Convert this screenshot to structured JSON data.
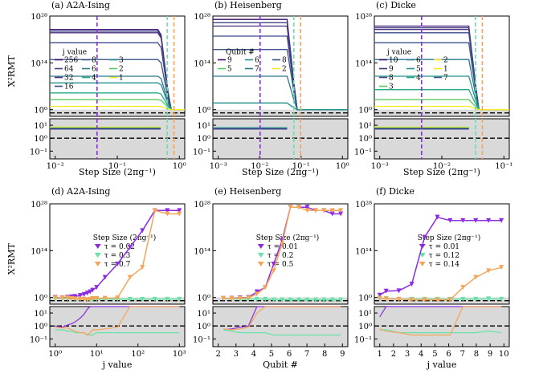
{
  "panels": [
    {
      "id": "a",
      "title": "(a) A2A-Ising",
      "xlabel": "Step Size (2πg⁻¹)",
      "ylabel": "X²RMT",
      "ticks_top": [
        "10²⁸",
        "10¹⁴",
        "10⁰"
      ],
      "ticks_bottom": [
        "10¹",
        "10⁰",
        "10⁻¹"
      ],
      "xticks": [
        "10⁻²",
        "10⁻¹",
        "10⁰"
      ],
      "legend": {
        "title": "j value",
        "items": [
          {
            "label": "256",
            "color": "#3b0f70"
          },
          {
            "label": "8",
            "color": "#3b528b"
          },
          {
            "label": "3",
            "color": "#21918c"
          },
          {
            "label": "64",
            "color": "#414487"
          },
          {
            "label": "6",
            "color": "#2a788e"
          },
          {
            "label": "2",
            "color": "#5ec962"
          },
          {
            "label": "32",
            "color": "#472d7b"
          },
          {
            "label": "4",
            "color": "#22a884"
          },
          {
            "label": "1",
            "color": "#fde725"
          },
          {
            "label": "16",
            "color": "#3e4a89"
          }
        ]
      }
    },
    {
      "id": "b",
      "title": "(b) Heisenberg",
      "xlabel": "Step Size (2πg⁻¹)",
      "ticks_top": [
        "10²⁸",
        "10¹⁴",
        "10⁰"
      ],
      "ticks_bottom": [
        "10¹",
        "10⁰",
        "10⁻¹"
      ],
      "xticks": [
        "10⁻³",
        "10⁻²",
        "10⁻¹",
        "10⁰"
      ],
      "legend": {
        "title": "Qubit #",
        "items": [
          {
            "label": "9",
            "color": "#3b0f70"
          },
          {
            "label": "6",
            "color": "#21918c"
          },
          {
            "label": "8",
            "color": "#3b528b"
          },
          {
            "label": "5",
            "color": "#5ec962"
          },
          {
            "label": "7",
            "color": "#2a788e"
          },
          {
            "label": "2",
            "color": "#fde725"
          }
        ]
      }
    },
    {
      "id": "c",
      "title": "(c) Dicke",
      "xlabel": "Step Size (2πg⁻¹)",
      "ticks_top": [
        "10²⁸",
        "10¹⁴",
        "10⁰"
      ],
      "ticks_bottom": [
        "10¹",
        "10⁰",
        "10⁻¹"
      ],
      "xticks": [
        "10⁻³",
        "10⁻²",
        "10⁻¹"
      ],
      "legend": {
        "title": "j value",
        "items": [
          {
            "label": "10",
            "color": "#3b0f70"
          },
          {
            "label": "6",
            "color": "#2a788e"
          },
          {
            "label": "2",
            "color": "#fde725"
          },
          {
            "label": "9",
            "color": "#472d7b"
          },
          {
            "label": "5",
            "color": "#21918c"
          },
          {
            "label": "1",
            "color": "#fde725"
          },
          {
            "label": "8",
            "color": "#414487"
          },
          {
            "label": "4",
            "color": "#22a884"
          },
          {
            "label": "7",
            "color": "#3b528b"
          },
          {
            "label": "3",
            "color": "#5ec962"
          }
        ]
      }
    },
    {
      "id": "d",
      "title": "(d) A2A-Ising",
      "xlabel": "j value",
      "ylabel": "X²RMT",
      "ticks_top": [
        "10²⁸",
        "10¹⁴",
        "10⁰"
      ],
      "ticks_bottom": [
        "10¹",
        "10⁰",
        "10⁻¹"
      ],
      "xticks": [
        "10⁰",
        "10¹",
        "10²",
        "10³"
      ],
      "legend": {
        "title": "Step Size (2πg⁻¹)",
        "items": [
          {
            "label": "τ = 0.02",
            "color": "#8b2be2"
          },
          {
            "label": "τ = 0.3",
            "color": "#66e3a8"
          },
          {
            "label": "τ = 0.7",
            "color": "#f5a55a"
          }
        ]
      }
    },
    {
      "id": "e",
      "title": "(e) Heisenberg",
      "xlabel": "Qubit #",
      "ticks_top": [
        "10²⁸",
        "10¹⁴",
        "10⁰"
      ],
      "ticks_bottom": [
        "10¹",
        "10⁰",
        "10⁻¹"
      ],
      "xticks": [
        "2",
        "3",
        "4",
        "5",
        "6",
        "7",
        "8",
        "9"
      ],
      "legend": {
        "title": "Step Size (2πg⁻¹)",
        "items": [
          {
            "label": "τ = 0.01",
            "color": "#8b2be2"
          },
          {
            "label": "τ = 0.2",
            "color": "#66e3a8"
          },
          {
            "label": "τ = 0.5",
            "color": "#f5a55a"
          }
        ]
      }
    },
    {
      "id": "f",
      "title": "(f) Dicke",
      "xlabel": "j value",
      "ticks_top": [
        "10²⁸",
        "10¹⁴",
        "10⁰"
      ],
      "ticks_bottom": [
        "10¹",
        "10⁰",
        "10⁻¹"
      ],
      "xticks": [
        "1",
        "2",
        "3",
        "4",
        "5",
        "6",
        "7",
        "8",
        "9",
        "10"
      ],
      "legend": {
        "title": "Step Size (2πg⁻¹)",
        "items": [
          {
            "label": "τ = 0.01",
            "color": "#8b2be2"
          },
          {
            "label": "τ = 0.12",
            "color": "#66e3a8"
          },
          {
            "label": "τ = 0.14",
            "color": "#f5a55a"
          }
        ]
      }
    }
  ],
  "chart_data": [
    {
      "type": "line",
      "panel": "d",
      "title": "(d) A2A-Ising",
      "xlabel": "j value",
      "ylabel": "X²RMT",
      "xscale": "log",
      "yscale": "log",
      "xlim": [
        1,
        1000
      ],
      "ylim": [
        0.01,
        1e+28
      ],
      "x": [
        1,
        1.5,
        2,
        2.5,
        3,
        4,
        5,
        6,
        7,
        8,
        10,
        16,
        32,
        64,
        128,
        256,
        512,
        1000
      ],
      "series": [
        {
          "name": "τ = 0.02",
          "color": "#8b2be2",
          "values": [
            1,
            0.8,
            1.2,
            1.5,
            2,
            4,
            8,
            20,
            50,
            150,
            1000.0,
            1000000.0,
            10000000000.0,
            1000000000000000.0,
            1e+20,
            1e+26,
            1e+26,
            1e+26
          ]
        },
        {
          "name": "τ = 0.3",
          "color": "#66e3a8",
          "values": [
            0.5,
            0.5,
            0.4,
            0.4,
            0.3,
            0.3,
            0.3,
            0.2,
            0.2,
            0.2,
            0.3,
            0.3,
            0.3,
            0.3,
            0.3,
            0.3,
            0.3,
            0.3
          ]
        },
        {
          "name": "τ = 0.7",
          "color": "#f5a55a",
          "values": [
            0.8,
            0.7,
            0.7,
            0.5,
            0.4,
            0.3,
            0.3,
            0.2,
            0.3,
            0.5,
            0.5,
            0.6,
            0.8,
            1000000.0,
            1000000000.0,
            1e+26,
            1e+25,
            1e+25
          ]
        }
      ]
    },
    {
      "type": "line",
      "panel": "e",
      "title": "(e) Heisenberg",
      "xlabel": "Qubit #",
      "xlim": [
        1.7,
        9.1
      ],
      "ylim": [
        0.01,
        1e+28
      ],
      "x": [
        2,
        2.5,
        3,
        3.5,
        4,
        4.5,
        5,
        5.5,
        6,
        6.5,
        7,
        7.5,
        8,
        8.5,
        9
      ],
      "series": [
        {
          "name": "τ = 0.01",
          "color": "#8b2be2",
          "values": [
            0.5,
            0.6,
            0.8,
            1,
            50,
            1000.0,
            10000000000.0,
            1e+17,
            1e+27,
            1e+27,
            1e+27,
            1e+26,
            1e+26,
            1e+25,
            1e+25
          ]
        },
        {
          "name": "τ = 0.2",
          "color": "#66e3a8",
          "values": [
            0.5,
            0.4,
            0.3,
            0.3,
            0.3,
            0.3,
            0.2,
            0.2,
            0.2,
            0.2,
            0.2,
            0.2,
            0.2,
            0.2,
            0.2
          ]
        },
        {
          "name": "τ = 0.5",
          "color": "#f5a55a",
          "values": [
            0.6,
            0.5,
            0.6,
            0.8,
            10,
            1000.0,
            100000000.0,
            1e+16,
            1e+27,
            1e+27,
            1e+26,
            1e+26,
            1e+26,
            1e+26,
            1e+26
          ]
        }
      ]
    },
    {
      "type": "line",
      "panel": "f",
      "title": "(f) Dicke",
      "xlabel": "j value",
      "xlim": [
        0.5,
        10.2
      ],
      "ylim": [
        0.01,
        1e+28
      ],
      "x": [
        0.5,
        1,
        2,
        3,
        4,
        5,
        6,
        7,
        8,
        9,
        10
      ],
      "series": [
        {
          "name": "τ = 0.01",
          "color": "#8b2be2",
          "values": [
            5,
            80,
            100,
            10000.0,
            1e+18,
            1e+24,
            1e+23,
            1e+23,
            1e+23,
            1e+23,
            1e+23
          ]
        },
        {
          "name": "τ = 0.12",
          "color": "#66e3a8",
          "values": [
            0.5,
            0.5,
            0.3,
            0.3,
            0.3,
            0.3,
            0.3,
            0.3,
            0.3,
            0.4,
            0.3
          ]
        },
        {
          "name": "τ = 0.14",
          "color": "#f5a55a",
          "values": [
            0.6,
            0.4,
            0.3,
            0.2,
            0.2,
            0.2,
            0.2,
            1000.0,
            1000000.0,
            100000000.0,
            1000000000.0
          ]
        }
      ]
    }
  ]
}
